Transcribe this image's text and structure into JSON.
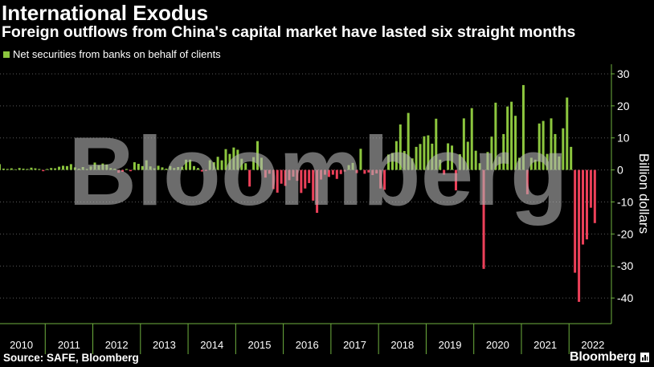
{
  "chart_data": {
    "type": "bar",
    "title": "International Exodus",
    "subtitle": "Foreign outflows from China's capital market have lasted six straight months",
    "ylabel": "Billion dollars",
    "y_axis_side": "right",
    "ylim": [
      -48,
      33
    ],
    "yticks": [
      30,
      20,
      10,
      0,
      -10,
      -20,
      -30,
      -40
    ],
    "grid": "horizontal dotted",
    "legend_position": "top-left",
    "categories": [
      "2010",
      "2011",
      "2012",
      "2013",
      "2014",
      "2015",
      "2016",
      "2017",
      "2018",
      "2019",
      "2020",
      "2021",
      "2022"
    ],
    "series": [
      {
        "name": "Net securities from banks on behalf of clients",
        "monthly_values": [
          [
            1.8,
            0.4,
            0.3,
            0.5,
            0.2,
            0.6,
            0.4,
            0.3,
            0.7,
            0.5,
            0.3,
            -0.4
          ],
          [
            0.3,
            0.6,
            0.5,
            1.0,
            1.3,
            1.2,
            1.8,
            0.8,
            0.4,
            0.9,
            0.3,
            1.1
          ],
          [
            2.3,
            1.4,
            2.0,
            1.7,
            0.6,
            0.4,
            -0.9,
            -0.6,
            0.3,
            -0.4,
            2.4,
            1.9
          ],
          [
            1.2,
            3.0,
            1.1,
            0.5,
            1.3,
            0.8,
            0.4,
            1.2,
            0.6,
            0.9,
            1.0,
            3.2
          ],
          [
            3.2,
            1.2,
            0.6,
            -0.5,
            -0.3,
            3.0,
            2.4,
            4.1,
            3.0,
            6.5,
            5.0,
            7.0
          ],
          [
            6.3,
            3.5,
            2.1,
            -5.2,
            4.0,
            9.0,
            3.8,
            -2.4,
            -1.2,
            -6.0,
            -7.1,
            -4.3
          ],
          [
            -5.0,
            -3.2,
            -2.1,
            -3.4,
            -7.2,
            -5.8,
            -4.1,
            -9.6,
            -13.4,
            -3.0,
            -1.5,
            -2.2
          ],
          [
            -1.5,
            -2.8,
            -1.3,
            -0.5,
            1.5,
            2.2,
            -1.0,
            6.6,
            -1.2,
            -0.8,
            -1.6,
            -1.1
          ],
          [
            -5.8,
            -6.2,
            4.8,
            5.3,
            9.0,
            14.2,
            5.9,
            17.8,
            3.6,
            7.2,
            8.1,
            10.5
          ],
          [
            10.8,
            8.2,
            16.0,
            3.2,
            -1.5,
            8.3,
            7.6,
            -6.4,
            4.9,
            16.1,
            8.8,
            19.3
          ],
          [
            6.0,
            2.1,
            -30.9,
            5.6,
            10.4,
            21.0,
            4.1,
            11.2,
            19.8,
            21.3,
            16.9,
            3.8
          ],
          [
            26.5,
            -7.6,
            3.8,
            3.2,
            14.5,
            15.3,
            5.0,
            16.1,
            11.2,
            4.2,
            13.0,
            22.6
          ],
          [
            7.2,
            -32.1,
            -41.2,
            -23.3,
            -21.7,
            -11.8,
            -16.6
          ]
        ]
      }
    ],
    "colors": {
      "positive": "#8cc63e",
      "negative": "#ec4059",
      "axis": "#6fb13f",
      "background": "#000000"
    }
  },
  "source": "Source: SAFE, Bloomberg",
  "logo": {
    "text": "Bloomberg",
    "icon": "bloomberg-terminal-icon"
  },
  "watermark": "Bloomberg"
}
